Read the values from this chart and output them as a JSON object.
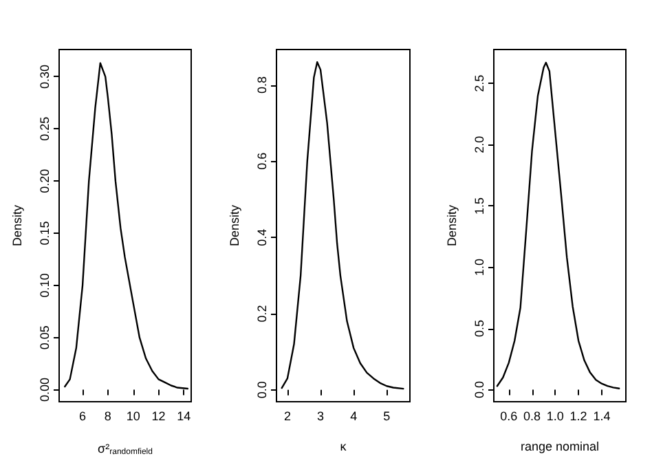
{
  "chart_data": [
    {
      "type": "line",
      "xlabel": "σ²$_{randomfield}$",
      "ylabel": "Density",
      "xlim": [
        4.15,
        14.58
      ],
      "ylim": [
        -0.0115,
        0.326
      ],
      "xticks": [
        6,
        8,
        10,
        12,
        14
      ],
      "yticks": [
        {
          "value": 0,
          "label": "0.00"
        },
        {
          "value": 0.05,
          "label": "0.05"
        },
        {
          "value": 0.1,
          "label": "0.10"
        },
        {
          "value": 0.15,
          "label": "0.15"
        },
        {
          "value": 0.2,
          "label": "0.20"
        },
        {
          "value": 0.25,
          "label": "0.25"
        },
        {
          "value": 0.3,
          "label": "0.30"
        }
      ],
      "grid": false,
      "marker": "none",
      "line_style": "solid",
      "series": [
        {
          "color": "#000000",
          "x": [
            4.6,
            5.0,
            5.5,
            6.0,
            6.5,
            7.0,
            7.4,
            7.8,
            8.0,
            8.3,
            8.6,
            9.0,
            9.34,
            10.0,
            10.5,
            11.0,
            11.5,
            12.0,
            12.5,
            13.0,
            13.5,
            14.3
          ],
          "values": [
            0.003,
            0.01,
            0.04,
            0.1,
            0.2,
            0.27,
            0.313,
            0.3,
            0.28,
            0.245,
            0.2,
            0.155,
            0.127,
            0.083,
            0.05,
            0.03,
            0.018,
            0.01,
            0.007,
            0.004,
            0.002,
            0.001
          ]
        }
      ]
    },
    {
      "type": "line",
      "xlabel": "κ",
      "ylabel": "Density",
      "xlim": [
        1.67,
        5.7
      ],
      "ylim": [
        -0.031,
        0.893
      ],
      "xticks": [
        2,
        3,
        4,
        5
      ],
      "yticks": [
        {
          "value": 0,
          "label": "0.0"
        },
        {
          "value": 0.2,
          "label": "0.2"
        },
        {
          "value": 0.4,
          "label": "0.4"
        },
        {
          "value": 0.6,
          "label": "0.6"
        },
        {
          "value": 0.8,
          "label": "0.8"
        }
      ],
      "grid": false,
      "marker": "none",
      "line_style": "solid",
      "series": [
        {
          "color": "#000000",
          "x": [
            1.83,
            2.0,
            2.2,
            2.4,
            2.5,
            2.6,
            2.8,
            2.9,
            3.0,
            3.2,
            3.4,
            3.5,
            3.6,
            3.8,
            4.0,
            4.2,
            4.4,
            4.6,
            4.8,
            5.0,
            5.2,
            5.5
          ],
          "values": [
            0.005,
            0.03,
            0.12,
            0.3,
            0.45,
            0.6,
            0.82,
            0.86,
            0.84,
            0.7,
            0.5,
            0.385,
            0.3,
            0.18,
            0.11,
            0.07,
            0.045,
            0.03,
            0.018,
            0.01,
            0.006,
            0.003
          ]
        }
      ]
    },
    {
      "type": "line",
      "xlabel": "range nominal",
      "ylabel": "Density",
      "xlim": [
        0.471,
        1.608
      ],
      "ylim": [
        -0.098,
        2.777
      ],
      "xticks": [
        {
          "value": 0.6,
          "label": "0.6"
        },
        {
          "value": 0.8,
          "label": "0.8"
        },
        {
          "value": 1.0,
          "label": "1.0"
        },
        {
          "value": 1.2,
          "label": "1.2"
        },
        {
          "value": 1.4,
          "label": "1.4"
        }
      ],
      "yticks": [
        {
          "value": 0,
          "label": "0.0"
        },
        {
          "value": 0.5,
          "label": "0.5"
        },
        {
          "value": 1.0,
          "label": "1.0"
        },
        {
          "value": 1.5,
          "label": "1.5"
        },
        {
          "value": 2.0,
          "label": "2.0"
        },
        {
          "value": 2.5,
          "label": "2.5"
        }
      ],
      "grid": false,
      "marker": "none",
      "line_style": "solid",
      "series": [
        {
          "color": "#000000",
          "x": [
            0.5,
            0.55,
            0.6,
            0.65,
            0.7,
            0.75,
            0.8,
            0.85,
            0.9,
            0.92,
            0.95,
            1.0,
            1.05,
            1.1,
            1.15,
            1.2,
            1.25,
            1.3,
            1.35,
            1.4,
            1.45,
            1.5,
            1.55
          ],
          "values": [
            0.03,
            0.1,
            0.22,
            0.4,
            0.67,
            1.3,
            1.95,
            2.4,
            2.63,
            2.67,
            2.6,
            2.1,
            1.6,
            1.08,
            0.68,
            0.4,
            0.24,
            0.14,
            0.08,
            0.05,
            0.03,
            0.018,
            0.01
          ]
        }
      ]
    }
  ]
}
